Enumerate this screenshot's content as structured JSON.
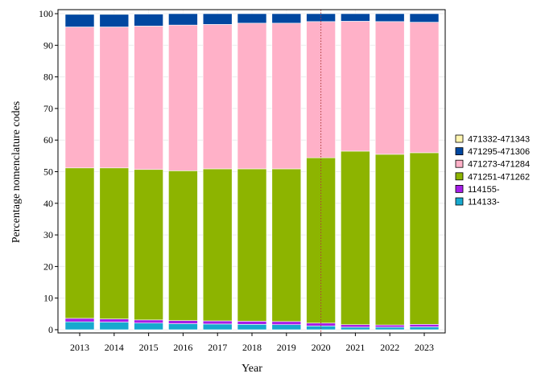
{
  "chart_data": {
    "type": "bar",
    "stacked": true,
    "categories": [
      "2013",
      "2014",
      "2015",
      "2016",
      "2017",
      "2018",
      "2019",
      "2020",
      "2021",
      "2022",
      "2023"
    ],
    "series": [
      {
        "name": "114133-",
        "color": "#17a9cf",
        "values": [
          2.5,
          2.4,
          2.1,
          1.9,
          1.8,
          1.7,
          1.6,
          1.2,
          0.8,
          0.8,
          0.9
        ]
      },
      {
        "name": "114155-",
        "color": "#a61ee8",
        "values": [
          1.1,
          1.0,
          1.0,
          1.0,
          1.0,
          1.0,
          1.0,
          0.9,
          0.8,
          0.7,
          0.8
        ]
      },
      {
        "name": "471251-471262",
        "color": "#8db400",
        "values": [
          47.6,
          47.8,
          47.6,
          47.4,
          48.1,
          48.2,
          48.3,
          52.3,
          54.9,
          54.0,
          54.3
        ]
      },
      {
        "name": "471273-471284",
        "color": "#ffb1c8",
        "values": [
          44.6,
          44.6,
          45.4,
          46.1,
          45.7,
          46.1,
          46.1,
          43.1,
          41.1,
          42.0,
          41.3
        ]
      },
      {
        "name": "471295-471306",
        "color": "#0047a0",
        "values": [
          4.0,
          4.0,
          3.8,
          3.6,
          3.4,
          3.0,
          3.0,
          2.5,
          2.4,
          2.5,
          2.7
        ]
      },
      {
        "name": "471332-471343",
        "color": "#fff5b0",
        "values": [
          0.2,
          0.2,
          0.1,
          0.0,
          0.0,
          0.0,
          0.0,
          0.0,
          0.0,
          0.0,
          0.0
        ]
      }
    ],
    "legend_order": [
      "471332-471343",
      "471295-471306",
      "471273-471284",
      "471251-471262",
      "114155-",
      "114133-"
    ],
    "xlabel": "Year",
    "ylabel": "Percentage nomenclature codes",
    "ylim": [
      0,
      100
    ],
    "yticks": [
      "0",
      "10",
      "20",
      "30",
      "40",
      "50",
      "60",
      "70",
      "80",
      "90",
      "100"
    ],
    "grid": true,
    "legend_position": "right",
    "reference_line": {
      "x": "2020",
      "color": "#b03a3a",
      "style": "dotted"
    }
  }
}
